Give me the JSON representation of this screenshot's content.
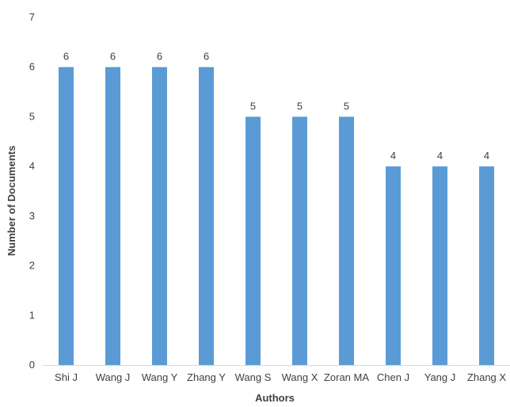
{
  "chart_data": {
    "type": "bar",
    "title": "",
    "xlabel": "Authors",
    "ylabel": "Number of Documents",
    "categories": [
      "Shi J",
      "Wang J",
      "Wang Y",
      "Zhang Y",
      "Wang S",
      "Wang X",
      "Zoran MA",
      "Chen J",
      "Yang J",
      "Zhang X"
    ],
    "series": [
      {
        "values": [
          6,
          6,
          6,
          6,
          5,
          5,
          5,
          4,
          4,
          4
        ]
      }
    ],
    "ylim": [
      0,
      7
    ],
    "yticks": [
      0,
      1,
      2,
      3,
      4,
      5,
      6,
      7
    ],
    "data_labels": true,
    "grid": false,
    "legend": "none",
    "colors": {
      "bar": "#5b9bd5",
      "axis": "#d9d9d9",
      "text": "#404040"
    }
  }
}
